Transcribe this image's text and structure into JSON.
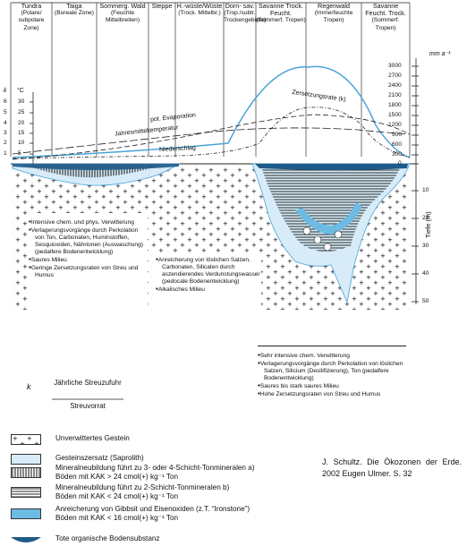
{
  "zones": [
    {
      "name": "Tundra",
      "sub": "(Polare/ subpolare Zone)"
    },
    {
      "name": "Taiga",
      "sub": "(Boreale Zone)"
    },
    {
      "name": "Sommerg. Wald",
      "sub": "(Feuchte Mittelbreiten)"
    },
    {
      "name": "Steppe",
      "sub": ""
    },
    {
      "name": "H.-wüste/Wüste",
      "sub": "(Trock. Mittelbr.)"
    },
    {
      "name": "Dorn- sav.",
      "sub": "(Trop./subtr. Trockengebiete)"
    },
    {
      "name": "Savanne Trock. Feucht.",
      "sub": "(Sommerf. Tropen)"
    },
    {
      "name": "Regenwald",
      "sub": "(Immerfeuchte Tropen)"
    },
    {
      "name": "Savanne Feucht. Trock.",
      "sub": "(Sommerf. Tropen)"
    }
  ],
  "left_axis": {
    "k_label": "k",
    "unit_label": "°C",
    "k_values": [
      "6",
      "5",
      "4",
      "3",
      "2",
      "1"
    ],
    "temp_values": [
      "30",
      "25",
      "20",
      "15",
      "10",
      "5"
    ]
  },
  "right_axis": {
    "unit_label": "mm a⁻¹",
    "values": [
      "3000",
      "2700",
      "2400",
      "2100",
      "1800",
      "1500",
      "1200",
      "900",
      "600",
      "300",
      "0"
    ],
    "depth_label": "Tiefe (m)",
    "depth_values": [
      "10",
      "20",
      "30",
      "40",
      "50"
    ]
  },
  "curves": {
    "zersetzungsrate": "Zersetzungsrate (k)",
    "evaporation": "pot. Evaporation",
    "jahresmittel": "Jahresmitteltemperatur",
    "niederschlag": "Niederschlag"
  },
  "notes": {
    "left": [
      "Intensive chem. und phys. Verwitterung",
      "Verlagerungsvorgänge durch Perkolation von Ton, Carbonaten, Huminstoffen, Sesquioxiden, Nährionen (Auswaschung) (pedalfere Bodenentwicklung)",
      "Saures Milieu",
      "Geringe Zersetzungsraten von Streu und Humus"
    ],
    "middle": [
      "Anreicherung von löslichen Salzen, Carbonaten, Silicaten durch aszendierendes Verdunstungswasser (pedocale Bodenentwicklung)",
      "Alkalisches Milieu"
    ],
    "right": [
      "Sehr intensive chem. Verwitterung",
      "Verlagerungsvorgänge durch Perkolation von löslichen Salzen, Silicium (Desilifizierung), Ton (pedalfere Bodenentwicklung)",
      "Saures bis stark saures Milieu",
      "Hohe Zersetzungsraten von Streu und Humus"
    ]
  },
  "formula": {
    "k": "k",
    "numerator": "Jährliche Streuzufuhr",
    "denominator": "Streuvorrat"
  },
  "legend": [
    {
      "line1": "Unverwittertes Gestein",
      "line2": ""
    },
    {
      "line1": "Gesteinszersatz (Saprolith)",
      "line2": ""
    },
    {
      "line1": "Mineralneubildung führt zu 3- oder 4-Schicht-Tonmineralen a)",
      "line2": "Böden mit KAK > 24 cmol(+) kg⁻¹ Ton"
    },
    {
      "line1": "Mineralneubildung führt zu 2-Schicht-Tonmineralen b)",
      "line2": "Böden mit KAK < 24 cmol(+) kg⁻¹ Ton"
    },
    {
      "line1": "Anreicherung von Gibbsit und Eisenoxiden (z.T. “Ironstone”)",
      "line2": "Böden mit KAK < 16 cmol(+) kg⁻¹ Ton"
    },
    {
      "line1": "Tote organische Bodensubstanz",
      "line2": ""
    }
  ],
  "citation": "J. Schultz. Die Ökozonen der Erde. 2002 Eugen Ulmer. S. 32",
  "colors": {
    "saprolith": "#d7ecf8",
    "gibbsit": "#6dbbe3",
    "organic": "#1d5a8a",
    "curve": "#4aa3d9"
  }
}
